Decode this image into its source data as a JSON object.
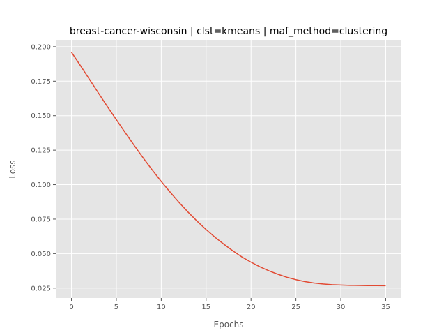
{
  "chart_data": {
    "type": "line",
    "title": "breast-cancer-wisconsin | clst=kmeans | maf_method=clustering",
    "xlabel": "Epochs",
    "ylabel": "Loss",
    "xlim": [
      -1.75,
      36.75
    ],
    "ylim": [
      0.0178,
      0.2045
    ],
    "xticks": [
      0,
      5,
      10,
      15,
      20,
      25,
      30,
      35
    ],
    "xtick_labels": [
      "0",
      "5",
      "10",
      "15",
      "20",
      "25",
      "30",
      "35"
    ],
    "yticks": [
      0.025,
      0.05,
      0.075,
      0.1,
      0.125,
      0.15,
      0.175,
      0.2
    ],
    "ytick_labels": [
      "0.025",
      "0.050",
      "0.075",
      "0.100",
      "0.125",
      "0.150",
      "0.175",
      "0.200"
    ],
    "grid": true,
    "style": "ggplot",
    "series": [
      {
        "color": "#E24A33",
        "x": [
          0,
          1,
          2,
          3,
          4,
          5,
          6,
          7,
          8,
          9,
          10,
          11,
          12,
          13,
          14,
          15,
          16,
          17,
          18,
          19,
          20,
          21,
          22,
          23,
          24,
          25,
          26,
          27,
          28,
          29,
          30,
          31,
          32,
          33,
          34,
          35
        ],
        "y": [
          0.196,
          0.1863,
          0.1764,
          0.1665,
          0.1566,
          0.1471,
          0.1376,
          0.1283,
          0.1193,
          0.1106,
          0.1023,
          0.0945,
          0.087,
          0.08,
          0.0735,
          0.0674,
          0.0618,
          0.0567,
          0.0519,
          0.0475,
          0.0438,
          0.0404,
          0.0375,
          0.035,
          0.0328,
          0.0311,
          0.0297,
          0.0287,
          0.028,
          0.0275,
          0.0272,
          0.027,
          0.0269,
          0.0268,
          0.0268,
          0.0267
        ]
      }
    ]
  }
}
